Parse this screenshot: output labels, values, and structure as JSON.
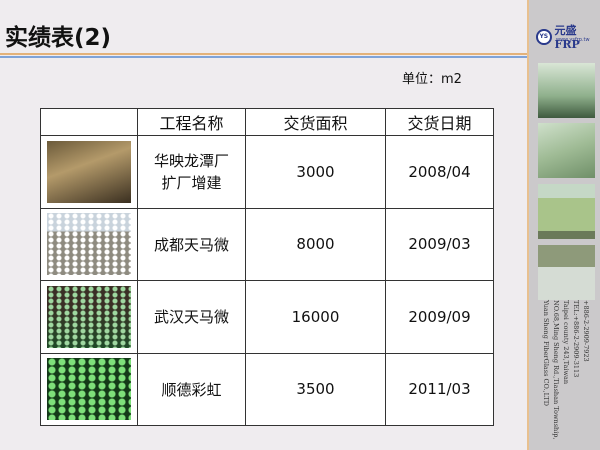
{
  "title": "实绩表(2)",
  "unit": "单位：m2",
  "logo": {
    "badge": "YS",
    "name": "元盛FRP",
    "url": "www.ysfrp.tw"
  },
  "address": [
    "Yuan Sheng FiberGlass CO.,LTD",
    "NO.68,Ming Sheng Rd.,Tiashan Township,",
    "Taipei county 243,Taiwan",
    "TEL:+886-2-2909-3113",
    "+886-2-2909-7923"
  ],
  "table": {
    "headers": [
      "",
      "工程名称",
      "交货面积",
      "交货日期"
    ],
    "rows": [
      {
        "name": "华映龙潭厂\n扩厂增建",
        "area": "3000",
        "date": "2008/04"
      },
      {
        "name": "成都天马微",
        "area": "8000",
        "date": "2009/03"
      },
      {
        "name": "武汉天马微",
        "area": "16000",
        "date": "2009/09"
      },
      {
        "name": "顺德彩虹",
        "area": "3500",
        "date": "2011/03"
      }
    ]
  }
}
